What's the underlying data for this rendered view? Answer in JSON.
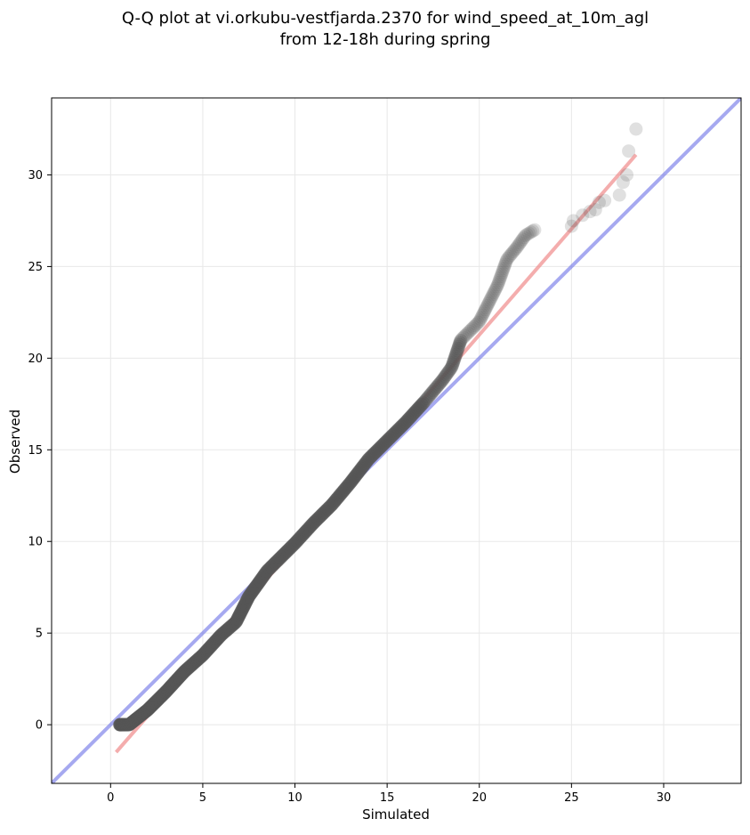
{
  "chart_data": {
    "type": "scatter",
    "title_lines": [
      "Q-Q plot at vi.orkubu-vestfjarda.2370 for wind_speed_at_10m_agl",
      "from 12-18h during spring"
    ],
    "xlabel": "Simulated",
    "ylabel": "Observed",
    "xlim": [
      -3.2,
      34.2
    ],
    "ylim": [
      -3.2,
      34.2
    ],
    "xticks": [
      0,
      5,
      10,
      15,
      20,
      25,
      30
    ],
    "yticks": [
      0,
      5,
      10,
      15,
      20,
      25,
      30
    ],
    "xtick_labels": [
      "0",
      "5",
      "10",
      "15",
      "20",
      "25",
      "30"
    ],
    "ytick_labels": [
      "0",
      "5",
      "10",
      "15",
      "20",
      "25",
      "30"
    ],
    "grid": true,
    "identity_line": {
      "color": "#6b6fe6",
      "from": [
        -3.2,
        -3.2
      ],
      "to": [
        34.2,
        34.2
      ]
    },
    "fit_line": {
      "color": "#f08a8a",
      "from": [
        0.3,
        -1.5
      ],
      "to": [
        28.5,
        31.1
      ]
    },
    "colors": {
      "points": "#555555",
      "identity": "#6b6fe6",
      "fit": "#f08a8a"
    },
    "points_profile": {
      "x": [
        0.5,
        1.0,
        1.5,
        2.0,
        3.0,
        4.0,
        5.0,
        6.0,
        6.8,
        7.5,
        8.5,
        10.0,
        11.0,
        12.0,
        13.0,
        14.0,
        15.0,
        16.0,
        17.0,
        18.0,
        18.5,
        19.0,
        19.5,
        20.0,
        20.5,
        21.0,
        21.5,
        22.0,
        22.5,
        23.0
      ],
      "y": [
        0.0,
        0.0,
        0.4,
        0.8,
        1.8,
        2.9,
        3.8,
        4.9,
        5.6,
        7.0,
        8.4,
        9.9,
        11.0,
        12.0,
        13.2,
        14.5,
        15.5,
        16.5,
        17.6,
        18.8,
        19.5,
        21.0,
        21.5,
        22.0,
        23.0,
        24.0,
        25.4,
        26.0,
        26.7,
        27.0
      ],
      "point_count": 400
    },
    "outlier_points": {
      "x": [
        25.0,
        25.1,
        25.6,
        26.0,
        26.3,
        26.5,
        26.8,
        27.6,
        27.8,
        28.0,
        28.1,
        28.5
      ],
      "y": [
        27.2,
        27.5,
        27.8,
        28.0,
        28.1,
        28.5,
        28.6,
        28.9,
        29.6,
        30.0,
        31.3,
        32.5
      ]
    }
  }
}
